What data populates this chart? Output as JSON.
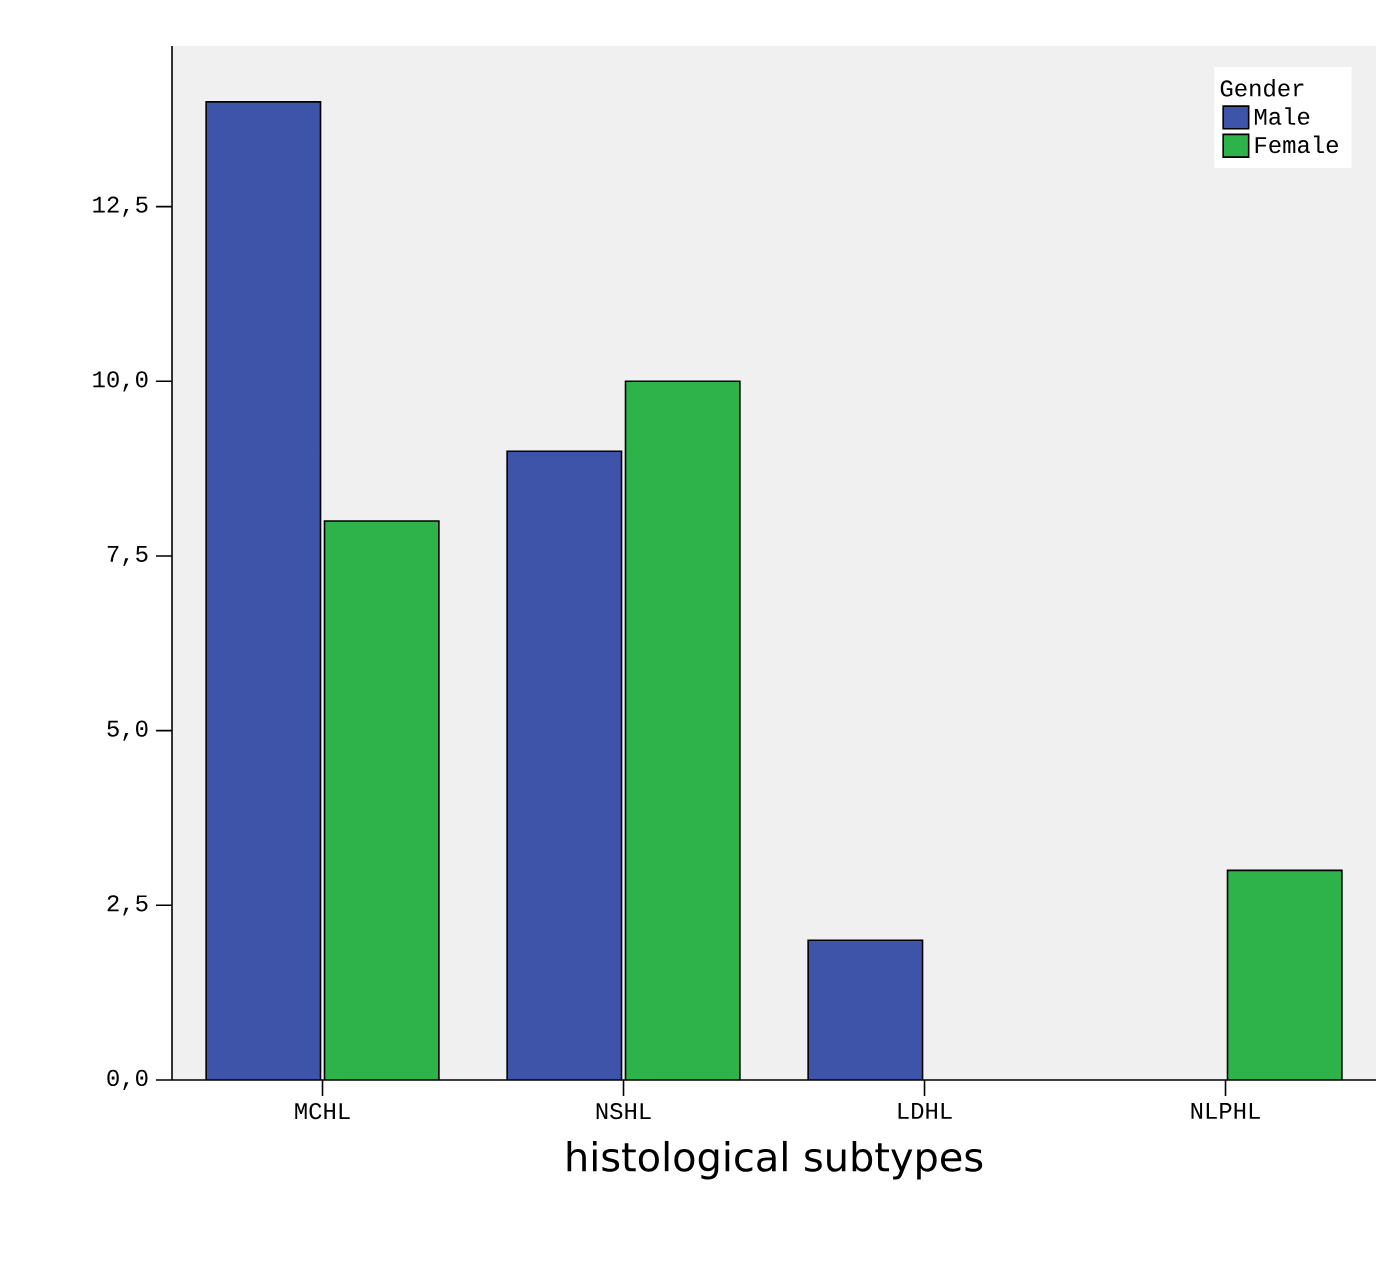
{
  "chart_data": {
    "type": "bar",
    "xlabel": "histological subtypes",
    "legend_title": "Gender",
    "categories": [
      "MCHL",
      "NSHL",
      "LDHL",
      "NLPHL"
    ],
    "series": [
      {
        "name": "Male",
        "color": "#3e54a8",
        "values": [
          14,
          9,
          2,
          null
        ]
      },
      {
        "name": "Female",
        "color": "#2eb24a",
        "values": [
          8,
          10,
          null,
          3
        ]
      }
    ],
    "ylim": [
      0,
      14.8
    ],
    "yticks": [
      {
        "value": 0,
        "label": "0,0"
      },
      {
        "value": 2.5,
        "label": "2,5"
      },
      {
        "value": 5,
        "label": "5,0"
      },
      {
        "value": 7.5,
        "label": "7,5"
      },
      {
        "value": 10,
        "label": "10,0"
      },
      {
        "value": 12.5,
        "label": "12,5"
      }
    ],
    "grid": false,
    "legend": "top right"
  }
}
